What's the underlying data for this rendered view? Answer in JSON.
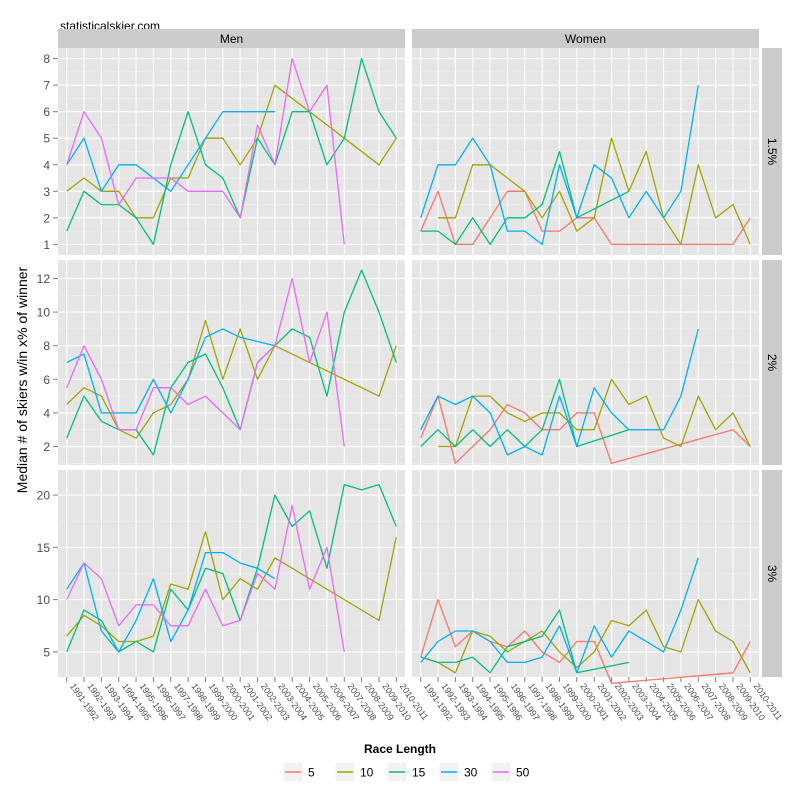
{
  "watermark": "statisticalskier.com",
  "chart_data": {
    "type": "line",
    "title": "",
    "ylabel": "Median # of skiers w/in x% of winner",
    "xlabel": "",
    "facet_columns": [
      "Men",
      "Women"
    ],
    "facet_rows": [
      "1.5%",
      "2%",
      "3%"
    ],
    "categories": [
      "1991-1992",
      "1992-1993",
      "1993-1994",
      "1994-1995",
      "1995-1996",
      "1996-1997",
      "1997-1998",
      "1998-1999",
      "1999-2000",
      "2000-2001",
      "2001-2002",
      "2002-2003",
      "2003-2004",
      "2004-2005",
      "2005-2006",
      "2006-2007",
      "2007-2008",
      "2008-2009",
      "2009-2010",
      "2010-2011"
    ],
    "legend": {
      "title": "Race Length",
      "entries": [
        "5",
        "10",
        "15",
        "30",
        "50"
      ],
      "colors": {
        "5": "#F8766D",
        "10": "#A3A500",
        "15": "#00BF7D",
        "30": "#00B0F6",
        "50": "#E76BF3"
      }
    },
    "row_axes": [
      {
        "ylim": [
          0.6,
          8.4
        ],
        "ticks": [
          1,
          2,
          3,
          4,
          5,
          6,
          7,
          8
        ]
      },
      {
        "ylim": [
          0.9,
          13.1
        ],
        "ticks": [
          2,
          4,
          6,
          8,
          10,
          12
        ]
      },
      {
        "ylim": [
          2.6,
          22.4
        ],
        "ticks": [
          5,
          10,
          15,
          20
        ]
      }
    ],
    "panels": [
      {
        "row": 0,
        "col": 0,
        "series": [
          {
            "name": "10",
            "values": [
              3,
              3.5,
              3,
              3,
              2,
              2,
              3.5,
              3.5,
              5,
              5,
              4,
              5,
              7,
              null,
              null,
              null,
              5,
              null,
              4,
              5
            ]
          },
          {
            "name": "15",
            "values": [
              1.5,
              3,
              2.5,
              2.5,
              2,
              1,
              4,
              6,
              4,
              3.5,
              2,
              5,
              4,
              6,
              6,
              4,
              5,
              8,
              6,
              5
            ]
          },
          {
            "name": "30",
            "values": [
              4,
              5,
              3,
              4,
              4,
              3.5,
              3,
              4,
              5,
              6,
              6,
              6,
              6,
              null,
              null,
              null,
              null,
              null,
              null,
              null
            ]
          },
          {
            "name": "50",
            "values": [
              4,
              6,
              5,
              2.5,
              3.5,
              3.5,
              3.5,
              3,
              3,
              3,
              2,
              5.5,
              4,
              8,
              6,
              7,
              1,
              null,
              null,
              null
            ]
          }
        ]
      },
      {
        "row": 0,
        "col": 1,
        "series": [
          {
            "name": "5",
            "values": [
              1.5,
              3,
              1,
              1,
              2,
              3,
              3,
              1.5,
              1.5,
              2,
              2,
              1,
              null,
              null,
              null,
              null,
              null,
              null,
              1,
              2
            ]
          },
          {
            "name": "10",
            "values": [
              null,
              2,
              2,
              4,
              4,
              null,
              3,
              2,
              3,
              1.5,
              2,
              5,
              3,
              4.5,
              2,
              1,
              4,
              2,
              2.5,
              1
            ]
          },
          {
            "name": "15",
            "values": [
              1.5,
              1.5,
              1,
              2,
              1,
              2,
              2,
              2.5,
              4.5,
              2,
              null,
              null,
              3,
              null,
              null,
              null,
              null,
              null,
              null,
              null
            ]
          },
          {
            "name": "30",
            "values": [
              2,
              4,
              4,
              5,
              4,
              1.5,
              1.5,
              1,
              4,
              2,
              4,
              3.5,
              2,
              3,
              2,
              3,
              7,
              null,
              null,
              null
            ]
          }
        ]
      },
      {
        "row": 1,
        "col": 0,
        "series": [
          {
            "name": "10",
            "values": [
              4.5,
              5.5,
              5,
              3,
              2.5,
              4,
              4.5,
              6,
              9.5,
              6,
              9,
              6,
              8,
              null,
              null,
              null,
              null,
              null,
              5,
              8
            ]
          },
          {
            "name": "15",
            "values": [
              2.5,
              5,
              3.5,
              3,
              3,
              1.5,
              5.5,
              7,
              7.5,
              5.5,
              3,
              7,
              8,
              9,
              8.5,
              5,
              10,
              12.5,
              10,
              7
            ]
          },
          {
            "name": "30",
            "values": [
              7,
              7.5,
              4,
              4,
              4,
              6,
              4,
              6,
              8.5,
              9,
              8.5,
              null,
              8,
              null,
              null,
              null,
              null,
              null,
              null,
              null
            ]
          },
          {
            "name": "50",
            "values": [
              5.5,
              8,
              6,
              3,
              3,
              5.5,
              5.5,
              4.5,
              5,
              4,
              3,
              7,
              8,
              12,
              7,
              10,
              2,
              null,
              null,
              null
            ]
          }
        ]
      },
      {
        "row": 1,
        "col": 1,
        "series": [
          {
            "name": "5",
            "values": [
              2.5,
              5,
              1,
              2,
              3,
              4.5,
              4,
              3,
              3,
              4,
              4,
              1,
              null,
              null,
              null,
              null,
              null,
              null,
              3,
              2
            ]
          },
          {
            "name": "10",
            "values": [
              null,
              2,
              2,
              5,
              5,
              4,
              3.5,
              4,
              4,
              3,
              3,
              6,
              4.5,
              5,
              2.5,
              2,
              5,
              3,
              4,
              2
            ]
          },
          {
            "name": "15",
            "values": [
              2,
              3,
              2,
              3,
              2,
              3,
              2,
              3,
              6,
              2,
              null,
              null,
              3,
              null,
              null,
              null,
              null,
              null,
              null,
              null
            ]
          },
          {
            "name": "30",
            "values": [
              3,
              5,
              4.5,
              5,
              4,
              1.5,
              2,
              1.5,
              5,
              2,
              5.5,
              4,
              3,
              3,
              3,
              5,
              9,
              null,
              null,
              null
            ]
          }
        ]
      },
      {
        "row": 2,
        "col": 0,
        "series": [
          {
            "name": "10",
            "values": [
              6.5,
              8.5,
              7.5,
              6,
              6,
              6.5,
              11.5,
              11,
              16.5,
              10,
              12,
              11,
              14,
              null,
              null,
              null,
              null,
              null,
              8,
              16
            ]
          },
          {
            "name": "15",
            "values": [
              5,
              9,
              8,
              5,
              6,
              5,
              11,
              9,
              13,
              12.5,
              8,
              13,
              20,
              17,
              18.5,
              13,
              21,
              20.5,
              21,
              17
            ]
          },
          {
            "name": "30",
            "values": [
              11,
              13.5,
              7,
              5,
              8,
              12,
              6,
              9,
              14.5,
              14.5,
              13.5,
              13,
              12,
              null,
              null,
              null,
              null,
              null,
              null,
              null
            ]
          },
          {
            "name": "50",
            "values": [
              10,
              13.5,
              12,
              7.5,
              9.5,
              9.5,
              7.5,
              7.5,
              11,
              7.5,
              8,
              12.5,
              11,
              19,
              11,
              15,
              5,
              null,
              null,
              null
            ]
          }
        ]
      },
      {
        "row": 2,
        "col": 1,
        "series": [
          {
            "name": "5",
            "values": [
              4.5,
              10,
              5.5,
              7,
              6,
              5.5,
              7,
              5,
              4,
              6,
              6,
              2,
              null,
              null,
              null,
              null,
              null,
              null,
              3,
              6
            ]
          },
          {
            "name": "10",
            "values": [
              null,
              4,
              3,
              7,
              6.5,
              5,
              6,
              7,
              5,
              3.5,
              5,
              8,
              7.5,
              9,
              5.5,
              5,
              10,
              7,
              6,
              3
            ]
          },
          {
            "name": "15",
            "values": [
              4.5,
              4,
              4,
              4.5,
              3,
              5.5,
              6,
              6.5,
              9,
              3,
              null,
              null,
              4,
              null,
              null,
              null,
              null,
              null,
              null,
              null
            ]
          },
          {
            "name": "30",
            "values": [
              4,
              6,
              7,
              7,
              6,
              4,
              4,
              4.5,
              7.5,
              3,
              7.5,
              4.5,
              7,
              null,
              5,
              9,
              14,
              null,
              null,
              null
            ]
          }
        ]
      }
    ]
  }
}
